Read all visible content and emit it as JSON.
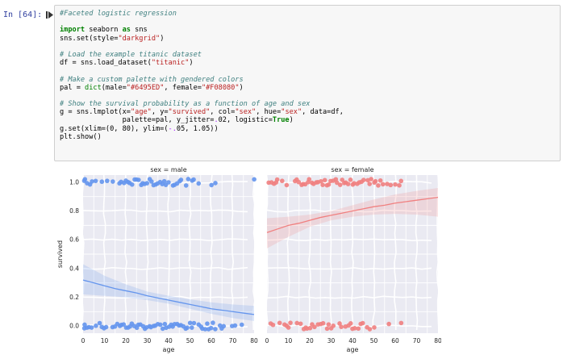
{
  "cell": {
    "prompt": "In [64]:",
    "code": [
      [
        [
          "c",
          "#Faceted logistic regression"
        ]
      ],
      [],
      [
        [
          "k",
          "import"
        ],
        [
          "t",
          " seaborn "
        ],
        [
          "k",
          "as"
        ],
        [
          "t",
          " sns"
        ]
      ],
      [
        [
          "t",
          "sns.set(style="
        ],
        [
          "s",
          "\"darkgrid\""
        ],
        [
          "t",
          ")"
        ]
      ],
      [],
      [
        [
          "c",
          "# Load the example titanic dataset"
        ]
      ],
      [
        [
          "t",
          "df = sns.load_dataset("
        ],
        [
          "s",
          "\"titanic\""
        ],
        [
          "t",
          ")"
        ]
      ],
      [],
      [
        [
          "c",
          "# Make a custom palette with gendered colors"
        ]
      ],
      [
        [
          "t",
          "pal = "
        ],
        [
          "n",
          "dict"
        ],
        [
          "t",
          "(male="
        ],
        [
          "s",
          "\"#6495ED\""
        ],
        [
          "t",
          ", female="
        ],
        [
          "s",
          "\"#F08080\""
        ],
        [
          "t",
          ")"
        ]
      ],
      [],
      [
        [
          "c",
          "# Show the survival probability as a function of age and sex"
        ]
      ],
      [
        [
          "t",
          "g = sns.lmplot(x="
        ],
        [
          "s",
          "\"age\""
        ],
        [
          "t",
          ", y="
        ],
        [
          "s",
          "\"survived\""
        ],
        [
          "t",
          ", col="
        ],
        [
          "s",
          "\"sex\""
        ],
        [
          "t",
          ", hue="
        ],
        [
          "s",
          "\"sex\""
        ],
        [
          "t",
          ", data=df,"
        ]
      ],
      [
        [
          "t",
          "               palette=pal, y_jitter="
        ],
        [
          "o",
          "."
        ],
        [
          "t",
          "02, logistic="
        ],
        [
          "k",
          "True"
        ],
        [
          "t",
          ")"
        ]
      ],
      [
        [
          "t",
          "g.set(xlim=(0, 80), ylim=("
        ],
        [
          "o",
          "-."
        ],
        [
          "t",
          "05, 1.05))"
        ]
      ],
      [
        [
          "t",
          "plt.show()"
        ]
      ]
    ]
  },
  "figure": {
    "grid_color": "#eaeaf2",
    "chart_data": [
      {
        "type": "scatter",
        "title": "sex = male",
        "xlabel": "age",
        "ylabel": "survived",
        "xlim": [
          0,
          80
        ],
        "ylim": [
          -0.05,
          1.05
        ],
        "xticks": [
          0,
          10,
          20,
          30,
          40,
          50,
          60,
          70,
          80
        ],
        "yticks": [
          0.0,
          0.2,
          0.4,
          0.6,
          0.8,
          1.0
        ],
        "color": "#6495ED",
        "fit_line": {
          "x": [
            0,
            5,
            10,
            15,
            20,
            25,
            30,
            35,
            40,
            45,
            50,
            55,
            60,
            65,
            70,
            75,
            80
          ],
          "y": [
            0.32,
            0.3,
            0.28,
            0.26,
            0.245,
            0.23,
            0.21,
            0.195,
            0.18,
            0.165,
            0.15,
            0.135,
            0.12,
            0.11,
            0.1,
            0.09,
            0.08
          ]
        },
        "ci_band": {
          "x": [
            0,
            10,
            20,
            30,
            40,
            50,
            60,
            70,
            80
          ],
          "upper": [
            0.43,
            0.35,
            0.29,
            0.24,
            0.21,
            0.185,
            0.165,
            0.15,
            0.14
          ],
          "lower": [
            0.22,
            0.21,
            0.2,
            0.18,
            0.155,
            0.12,
            0.085,
            0.055,
            0.035
          ]
        },
        "points_survived_1_ages": [
          0.5,
          1,
          2,
          3,
          4,
          6,
          9,
          11,
          14,
          17,
          18,
          19,
          20,
          21,
          22,
          23,
          24,
          25,
          26,
          27,
          28,
          29,
          30,
          31,
          32,
          33,
          34,
          35,
          36,
          37,
          38,
          39,
          40,
          42,
          43,
          44,
          45,
          46,
          48,
          49,
          51,
          52,
          54,
          60,
          62,
          80
        ],
        "points_survived_0_ages": [
          0.5,
          1,
          2,
          3,
          4,
          6,
          8,
          9,
          10,
          11,
          14,
          15,
          16,
          17,
          18,
          19,
          20,
          21,
          22,
          23,
          24,
          25,
          26,
          27,
          28,
          29,
          30,
          31,
          32,
          33,
          34,
          35,
          36,
          37,
          38,
          39,
          40,
          41,
          42,
          43,
          44,
          45,
          46,
          47,
          48,
          49,
          50,
          51,
          52,
          54,
          55,
          56,
          57,
          58,
          59,
          60,
          61,
          62,
          64,
          65,
          66,
          70,
          71,
          74
        ]
      },
      {
        "type": "scatter",
        "title": "sex = female",
        "xlabel": "age",
        "ylabel": "",
        "xlim": [
          0,
          80
        ],
        "ylim": [
          -0.05,
          1.05
        ],
        "xticks": [
          0,
          10,
          20,
          30,
          40,
          50,
          60,
          70,
          80
        ],
        "yticks": [
          0.0,
          0.2,
          0.4,
          0.6,
          0.8,
          1.0
        ],
        "color": "#F08080",
        "fit_line": {
          "x": [
            0,
            5,
            10,
            15,
            20,
            25,
            30,
            35,
            40,
            45,
            50,
            55,
            60,
            65,
            70,
            75,
            80
          ],
          "y": [
            0.65,
            0.675,
            0.7,
            0.715,
            0.735,
            0.755,
            0.77,
            0.785,
            0.8,
            0.815,
            0.83,
            0.84,
            0.855,
            0.865,
            0.875,
            0.885,
            0.895
          ]
        },
        "ci_band": {
          "x": [
            0,
            10,
            20,
            30,
            40,
            50,
            60,
            70,
            80
          ],
          "upper": [
            0.75,
            0.76,
            0.775,
            0.8,
            0.84,
            0.88,
            0.915,
            0.94,
            0.96
          ],
          "lower": [
            0.54,
            0.62,
            0.69,
            0.735,
            0.76,
            0.775,
            0.78,
            0.775,
            0.76
          ]
        },
        "points_survived_1_ages": [
          1,
          2,
          3,
          4,
          5,
          7,
          9,
          13,
          14,
          15,
          16,
          17,
          18,
          19,
          20,
          21,
          22,
          23,
          24,
          25,
          26,
          27,
          28,
          29,
          30,
          31,
          32,
          33,
          34,
          35,
          36,
          37,
          38,
          39,
          40,
          41,
          42,
          43,
          44,
          45,
          47,
          48,
          49,
          50,
          51,
          52,
          53,
          54,
          56,
          58,
          60,
          62,
          63
        ],
        "points_survived_0_ages": [
          2,
          3,
          6,
          8,
          9,
          10,
          11,
          14,
          16,
          17,
          18,
          19,
          20,
          21,
          22,
          24,
          25,
          26,
          28,
          29,
          30,
          31,
          34,
          35,
          37,
          38,
          39,
          40,
          41,
          43,
          44,
          45,
          47,
          48,
          50,
          57,
          63
        ]
      }
    ]
  }
}
